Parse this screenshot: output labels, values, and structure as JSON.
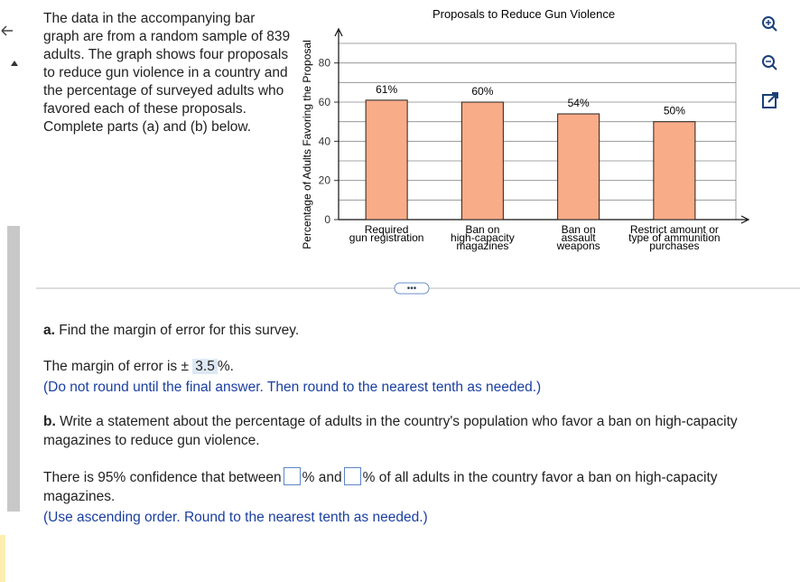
{
  "problem": {
    "text": "The data in the accompanying bar graph are from a random sample of 839 adults. The graph shows four proposals to reduce gun violence in a country and the percentage of surveyed adults who favored each of these proposals. Complete parts (a) and (b) below."
  },
  "chart_data": {
    "type": "bar",
    "title": "Proposals to Reduce Gun Violence",
    "y_label": "Percentage of Adults Favoring the Proposal",
    "categories": [
      [
        "Required",
        "gun registration"
      ],
      [
        "Ban on",
        "high-capacity",
        "magazines"
      ],
      [
        "Ban on",
        "assault",
        "weapons"
      ],
      [
        "Restrict amount or",
        "type of ammunition",
        "purchases"
      ]
    ],
    "values": [
      61,
      60,
      54,
      50
    ],
    "value_labels": [
      "61%",
      "60%",
      "54%",
      "50%"
    ],
    "color": "#f9ac88",
    "ylim": [
      0,
      90
    ],
    "yticks": [
      0,
      20,
      40,
      60,
      80
    ],
    "minor_gridlines": [
      10,
      30,
      50,
      70,
      90
    ],
    "grid": true
  },
  "part_a": {
    "label": "a.",
    "question": "Find the margin of error for this survey.",
    "answer_prefix": "The margin of error is ±",
    "answer": "3.5",
    "answer_suffix": "%.",
    "hint": "(Do not round until the final answer. Then round to the nearest tenth as needed.)"
  },
  "part_b": {
    "label": "b.",
    "question": "Write a statement about the percentage of adults in the country's population who favor a ban on high-capacity magazines to reduce gun violence.",
    "statement_1": "There is 95% confidence that between",
    "statement_2": "% and",
    "statement_3": "% of all adults in the country favor a ban on high-capacity magazines.",
    "hint": "(Use ascending order. Round to the nearest tenth as needed.)"
  }
}
